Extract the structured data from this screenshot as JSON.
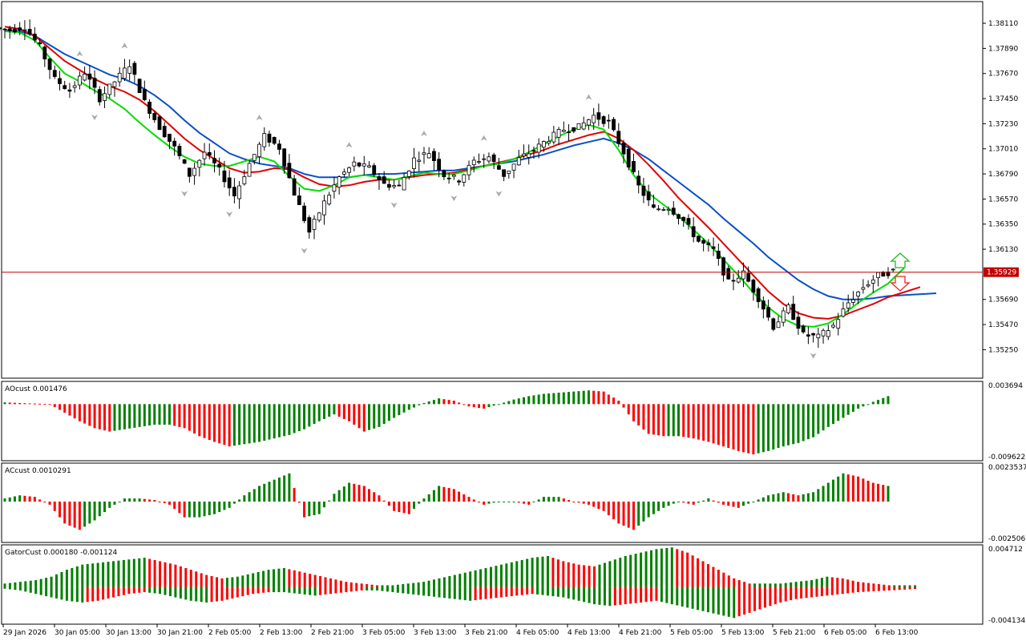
{
  "chart_data": {
    "type": "candlestick",
    "colors": {
      "bull": "#008000",
      "bear": "#ff0000",
      "jaw": "#0a4fc8",
      "teeth": "#e00000",
      "lips": "#00dd00",
      "price_line": "#c00000",
      "badge": "#c00000"
    },
    "price_axis": {
      "ticks": [
        "1.38110",
        "1.37890",
        "1.37670",
        "1.37450",
        "1.37230",
        "1.37010",
        "1.36790",
        "1.36570",
        "1.36350",
        "1.36130",
        "1.35690",
        "1.35470",
        "1.35250"
      ],
      "range": [
        1.35,
        1.383
      ]
    },
    "current_price": {
      "value": 1.35929,
      "label": "1.35929"
    },
    "time_axis": [
      "29 Jan 2026",
      "30 Jan 05:00",
      "30 Jan 13:00",
      "30 Jan 21:00",
      "2 Feb 05:00",
      "2 Feb 13:00",
      "2 Feb 21:00",
      "3 Feb 05:00",
      "3 Feb 13:00",
      "3 Feb 21:00",
      "4 Feb 05:00",
      "4 Feb 13:00",
      "4 Feb 21:00",
      "5 Feb 05:00",
      "5 Feb 13:00",
      "5 Feb 21:00",
      "6 Feb 05:00",
      "6 Feb 13:00"
    ],
    "price_path": [
      1.3805,
      1.3808,
      1.379,
      1.3762,
      1.3752,
      1.3768,
      1.3745,
      1.376,
      1.3775,
      1.3742,
      1.372,
      1.3702,
      1.3678,
      1.3698,
      1.3682,
      1.366,
      1.3688,
      1.3712,
      1.3702,
      1.3662,
      1.3628,
      1.3654,
      1.3676,
      1.3688,
      1.3684,
      1.367,
      1.3668,
      1.3692,
      1.3698,
      1.3678,
      1.3674,
      1.369,
      1.3694,
      1.3678,
      1.3692,
      1.37,
      1.371,
      1.3718,
      1.372,
      1.373,
      1.3724,
      1.3698,
      1.3668,
      1.3648,
      1.365,
      1.3638,
      1.362,
      1.3612,
      1.3584,
      1.3592,
      1.357,
      1.3545,
      1.3562,
      1.3538,
      1.3536,
      1.3546,
      1.3566,
      1.358,
      1.359,
      1.3594
    ],
    "alligator": {
      "jaw": [
        1.3805,
        1.3804,
        1.38,
        1.3792,
        1.3784,
        1.3778,
        1.3772,
        1.3766,
        1.3762,
        1.3756,
        1.3748,
        1.3738,
        1.3726,
        1.3715,
        1.3706,
        1.3697,
        1.3692,
        1.3688,
        1.3686,
        1.3684,
        1.3679,
        1.3676,
        1.3676,
        1.3676,
        1.3678,
        1.3679,
        1.3679,
        1.368,
        1.3681,
        1.3682,
        1.3682,
        1.3684,
        1.3686,
        1.3688,
        1.369,
        1.3693,
        1.3696,
        1.37,
        1.3704,
        1.3707,
        1.371,
        1.3706,
        1.37,
        1.3692,
        1.3682,
        1.3672,
        1.3662,
        1.3652,
        1.364,
        1.3629,
        1.3618,
        1.3606,
        1.3596,
        1.3586,
        1.3578,
        1.3572,
        1.3569,
        1.3569,
        1.357,
        1.3572
      ],
      "teeth": [
        1.3808,
        1.3806,
        1.38,
        1.3789,
        1.3778,
        1.377,
        1.3762,
        1.3756,
        1.3751,
        1.3744,
        1.3734,
        1.3722,
        1.371,
        1.37,
        1.3692,
        1.3684,
        1.368,
        1.3681,
        1.3684,
        1.3683,
        1.3676,
        1.367,
        1.3668,
        1.3669,
        1.3672,
        1.3674,
        1.3674,
        1.3676,
        1.3678,
        1.3679,
        1.368,
        1.3683,
        1.3686,
        1.3689,
        1.3692,
        1.3696,
        1.37,
        1.3705,
        1.3709,
        1.3713,
        1.3716,
        1.371,
        1.37,
        1.3687,
        1.3673,
        1.3658,
        1.3645,
        1.3632,
        1.3618,
        1.3604,
        1.359,
        1.3576,
        1.3565,
        1.3557,
        1.3553,
        1.3552,
        1.3555,
        1.356,
        1.3565,
        1.3571
      ],
      "lips": [
        1.3804,
        1.3803,
        1.3796,
        1.3781,
        1.3767,
        1.376,
        1.3752,
        1.3745,
        1.3736,
        1.3724,
        1.3713,
        1.3703,
        1.3694,
        1.3688,
        1.3686,
        1.3686,
        1.369,
        1.3694,
        1.369,
        1.3677,
        1.3666,
        1.3664,
        1.3669,
        1.3676,
        1.3678,
        1.3676,
        1.3674,
        1.3677,
        1.368,
        1.3679,
        1.3679,
        1.3682,
        1.3686,
        1.3688,
        1.3692,
        1.3698,
        1.3705,
        1.3712,
        1.3718,
        1.3722,
        1.3718,
        1.37,
        1.3678,
        1.3662,
        1.3652,
        1.3642,
        1.363,
        1.3618,
        1.3604,
        1.359,
        1.3575,
        1.3562,
        1.3552,
        1.3546,
        1.3545,
        1.3548,
        1.3556,
        1.3566,
        1.3575,
        1.3583
      ]
    },
    "panels": [
      {
        "name": "AOcust",
        "label": "AOcust 0.001476",
        "max_label": "0.003694",
        "min_label": "-0.009622",
        "range": [
          -0.009622,
          0.003694
        ],
        "values": [
          0.0003,
          0.0002,
          0.0001,
          0.0,
          -0.0015,
          -0.003,
          -0.0042,
          -0.0048,
          -0.0044,
          -0.004,
          -0.0036,
          -0.0036,
          -0.0042,
          -0.0056,
          -0.0066,
          -0.0074,
          -0.007,
          -0.0066,
          -0.006,
          -0.0054,
          -0.0044,
          -0.003,
          -0.0018,
          -0.003,
          -0.0048,
          -0.004,
          -0.0024,
          -0.001,
          0.0002,
          0.001,
          0.0006,
          -0.0004,
          -0.0008,
          0.0,
          0.0008,
          0.0014,
          0.0018,
          0.002,
          0.0022,
          0.0024,
          0.0022,
          0.0006,
          -0.003,
          -0.0052,
          -0.0056,
          -0.0056,
          -0.006,
          -0.0066,
          -0.0074,
          -0.0082,
          -0.0088,
          -0.0082,
          -0.0074,
          -0.0068,
          -0.0058,
          -0.004,
          -0.0024,
          -0.0008,
          0.0004,
          0.0014
        ]
      },
      {
        "name": "ACcust",
        "label": "ACcust 0.0010291",
        "max_label": "0.0023537",
        "min_label": "-0.0025062",
        "range": [
          -0.0025062,
          0.0023537
        ],
        "values": [
          0.0002,
          0.0004,
          0.0003,
          -0.0002,
          -0.0014,
          -0.0018,
          -0.0012,
          -0.0004,
          0.0002,
          0.0002,
          0.0001,
          -0.0002,
          -0.001,
          -0.001,
          -0.0008,
          -0.0004,
          0.0004,
          0.001,
          0.0014,
          0.0018,
          -0.001,
          -0.0008,
          0.0005,
          0.0012,
          0.001,
          0.0004,
          -0.0006,
          -0.0008,
          0.0002,
          0.001,
          0.0008,
          0.0003,
          -0.0002,
          0.0,
          0.0,
          -0.0002,
          0.0003,
          0.0003,
          0.0,
          -0.0002,
          -0.0006,
          -0.0014,
          -0.0018,
          -0.001,
          -0.0004,
          0.0,
          -0.0002,
          0.0002,
          -0.0002,
          -0.0004,
          0.0,
          0.0004,
          0.0006,
          0.0004,
          0.0006,
          0.0012,
          0.0018,
          0.0016,
          0.0012,
          0.001
        ]
      },
      {
        "name": "GatorCust",
        "label": "GatorCust 0.000180 -0.001124",
        "max_label": "0.004712",
        "min_label": "-0.004134",
        "range": [
          -0.004134,
          0.004712
        ],
        "upper": [
          0.0004,
          0.0006,
          0.0008,
          0.0012,
          0.002,
          0.0026,
          0.0028,
          0.003,
          0.0032,
          0.0034,
          0.003,
          0.0026,
          0.002,
          0.0014,
          0.001,
          0.0012,
          0.0016,
          0.002,
          0.0022,
          0.0018,
          0.0014,
          0.001,
          0.0006,
          0.0004,
          0.0002,
          0.0002,
          0.0004,
          0.0006,
          0.001,
          0.0014,
          0.0018,
          0.0022,
          0.0026,
          0.003,
          0.0034,
          0.0036,
          0.003,
          0.0026,
          0.0024,
          0.003,
          0.0036,
          0.004,
          0.0044,
          0.0046,
          0.004,
          0.003,
          0.002,
          0.001,
          0.0004,
          0.0004,
          0.0004,
          0.0006,
          0.0008,
          0.0012,
          0.001,
          0.0006,
          0.0004,
          0.0002,
          0.0002,
          0.0002
        ],
        "lower": [
          -0.0002,
          -0.0004,
          -0.0008,
          -0.0012,
          -0.0016,
          -0.0018,
          -0.0016,
          -0.0012,
          -0.0008,
          -0.0006,
          -0.0008,
          -0.0012,
          -0.0016,
          -0.0018,
          -0.0016,
          -0.0012,
          -0.0008,
          -0.0006,
          -0.0006,
          -0.0008,
          -0.001,
          -0.0008,
          -0.0006,
          -0.0004,
          -0.0004,
          -0.0006,
          -0.0008,
          -0.001,
          -0.0012,
          -0.0014,
          -0.0016,
          -0.0014,
          -0.0012,
          -0.001,
          -0.0008,
          -0.001,
          -0.0012,
          -0.0016,
          -0.002,
          -0.0022,
          -0.002,
          -0.0018,
          -0.0016,
          -0.002,
          -0.0024,
          -0.0028,
          -0.0032,
          -0.0036,
          -0.003,
          -0.0024,
          -0.0018,
          -0.0014,
          -0.0012,
          -0.001,
          -0.0008,
          -0.0006,
          -0.0005,
          -0.0004,
          -0.0003,
          -0.0002
        ]
      }
    ]
  }
}
